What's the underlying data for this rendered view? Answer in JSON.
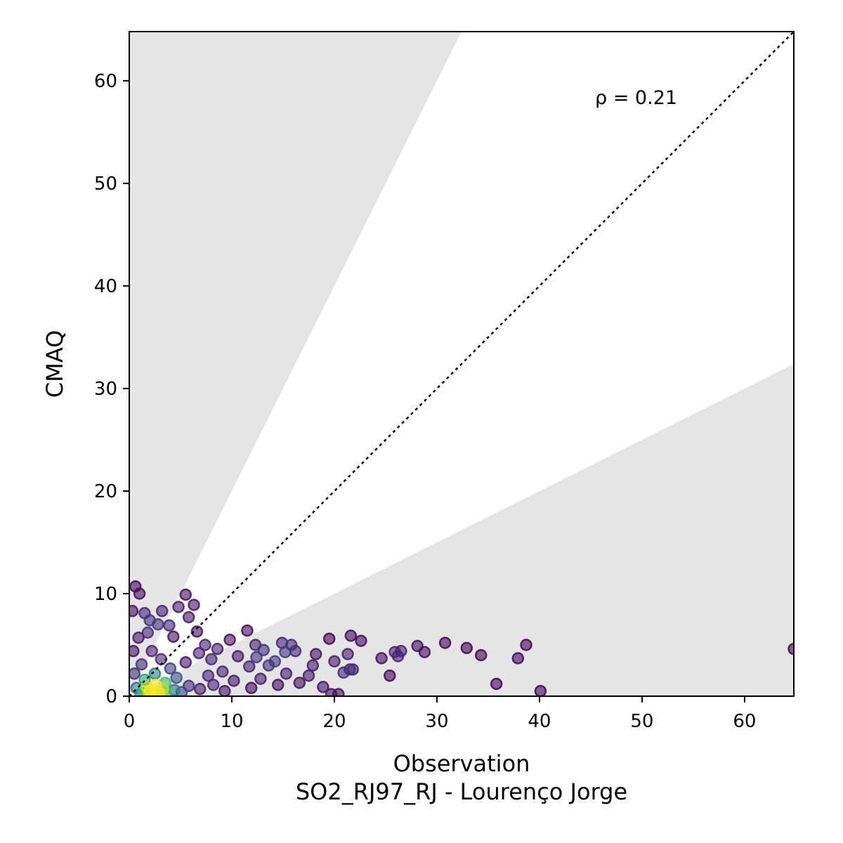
{
  "chart_data": {
    "type": "scatter",
    "title": "",
    "xlabel": "Observation",
    "xlabel_line2": "SO2_RJ97_RJ - Lourenço Jorge",
    "ylabel": "CMAQ",
    "xlim": [
      0,
      64.8
    ],
    "ylim": [
      0,
      64.8
    ],
    "xticks": [
      0,
      10,
      20,
      30,
      40,
      50,
      60
    ],
    "yticks": [
      0,
      10,
      20,
      30,
      40,
      50,
      60
    ],
    "annotation": "ρ = 0.21",
    "identity_line": true,
    "shaded_bands": {
      "upper_slope": 2.0,
      "lower_slope": 0.5,
      "color": "#e5e5e5"
    },
    "colormap": "viridis",
    "points": [
      [
        0.3,
        8.3
      ],
      [
        0.6,
        10.7
      ],
      [
        1.0,
        10.0
      ],
      [
        1.5,
        8.1
      ],
      [
        3.2,
        8.3
      ],
      [
        5.5,
        9.9
      ],
      [
        4.8,
        8.7
      ],
      [
        6.3,
        8.9
      ],
      [
        5.8,
        7.7
      ],
      [
        6.6,
        6.3
      ],
      [
        2.0,
        7.4
      ],
      [
        11.5,
        6.4
      ],
      [
        12.3,
        5.0
      ],
      [
        14.9,
        5.2
      ],
      [
        15.8,
        5.0
      ],
      [
        15.2,
        4.3
      ],
      [
        16.2,
        4.4
      ],
      [
        18.2,
        4.1
      ],
      [
        19.5,
        5.6
      ],
      [
        20.0,
        3.4
      ],
      [
        21.6,
        5.9
      ],
      [
        22.6,
        5.4
      ],
      [
        21.3,
        4.1
      ],
      [
        21.5,
        2.6
      ],
      [
        21.8,
        2.6
      ],
      [
        20.9,
        2.3
      ],
      [
        18.9,
        0.9
      ],
      [
        19.7,
        0.2
      ],
      [
        20.4,
        0.2
      ],
      [
        16.6,
        1.3
      ],
      [
        17.5,
        2.0
      ],
      [
        17.9,
        3.0
      ],
      [
        15.3,
        2.2
      ],
      [
        14.2,
        3.4
      ],
      [
        13.1,
        4.5
      ],
      [
        12.8,
        1.7
      ],
      [
        24.6,
        3.7
      ],
      [
        25.9,
        4.3
      ],
      [
        26.5,
        4.4
      ],
      [
        26.2,
        3.9
      ],
      [
        25.4,
        2.0
      ],
      [
        28.1,
        4.9
      ],
      [
        28.8,
        4.3
      ],
      [
        30.8,
        5.2
      ],
      [
        32.9,
        4.7
      ],
      [
        34.3,
        4.0
      ],
      [
        35.8,
        1.2
      ],
      [
        37.9,
        3.7
      ],
      [
        38.7,
        5.0
      ],
      [
        40.1,
        0.5
      ],
      [
        64.8,
        4.6
      ],
      [
        9.8,
        5.5
      ],
      [
        8.6,
        4.6
      ],
      [
        10.6,
        3.9
      ],
      [
        11.7,
        2.9
      ],
      [
        12.4,
        3.8
      ],
      [
        13.6,
        3.0
      ],
      [
        14.5,
        1.1
      ],
      [
        11.9,
        0.8
      ],
      [
        10.2,
        1.5
      ],
      [
        9.1,
        2.4
      ],
      [
        8.0,
        3.6
      ],
      [
        7.4,
        5.0
      ],
      [
        6.8,
        4.2
      ],
      [
        5.5,
        3.3
      ],
      [
        4.3,
        5.8
      ],
      [
        3.9,
        6.9
      ],
      [
        2.8,
        7.0
      ],
      [
        1.8,
        6.2
      ],
      [
        0.9,
        5.7
      ],
      [
        0.4,
        4.4
      ],
      [
        1.2,
        3.1
      ],
      [
        2.5,
        2.2
      ],
      [
        3.5,
        1.3
      ],
      [
        4.6,
        1.8
      ],
      [
        5.8,
        1.0
      ],
      [
        6.9,
        0.7
      ],
      [
        8.2,
        1.1
      ],
      [
        9.3,
        0.5
      ],
      [
        7.7,
        2.0
      ],
      [
        2.2,
        4.4
      ],
      [
        3.1,
        3.6
      ],
      [
        4.0,
        2.7
      ],
      [
        1.5,
        1.6
      ],
      [
        0.7,
        0.8
      ],
      [
        2.0,
        0.5
      ],
      [
        2.9,
        0.4
      ],
      [
        3.6,
        0.3
      ],
      [
        1.1,
        0.2
      ],
      [
        0.5,
        2.2
      ],
      [
        1.7,
        0.9
      ],
      [
        2.6,
        1.1
      ],
      [
        3.3,
        0.7
      ],
      [
        4.4,
        0.6
      ],
      [
        5.1,
        0.4
      ],
      [
        1.4,
        0.3
      ],
      [
        2.3,
        0.2
      ],
      [
        3.0,
        0.15
      ],
      [
        1.9,
        0.25
      ],
      [
        2.7,
        0.3
      ]
    ]
  }
}
